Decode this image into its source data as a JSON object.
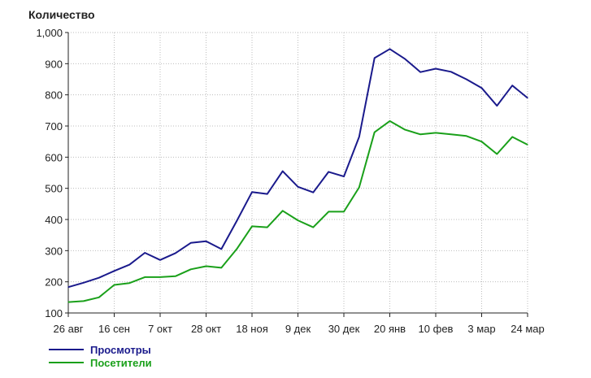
{
  "chart_data": {
    "type": "line",
    "title": "",
    "ylabel": "Количество",
    "xlabel": "",
    "ylim": [
      100,
      1000
    ],
    "yticks": [
      100,
      200,
      300,
      400,
      500,
      600,
      700,
      800,
      900,
      1000
    ],
    "ytick_labels": [
      "100",
      "200",
      "300",
      "400",
      "500",
      "600",
      "700",
      "800",
      "900",
      "1,000"
    ],
    "x_tick_labels": [
      "26 авг",
      "16 сен",
      "7 окт",
      "28 окт",
      "18 ноя",
      "9 дек",
      "30 дек",
      "20 янв",
      "10 фев",
      "3 мар",
      "24 мар"
    ],
    "points_per_tick": 3,
    "grid": true,
    "legend_position": "bottom-left",
    "series": [
      {
        "name": "Просмотры",
        "color": "#1a1a8c",
        "values": [
          183,
          197,
          213,
          235,
          255,
          293,
          270,
          292,
          325,
          330,
          305,
          395,
          488,
          482,
          555,
          505,
          487,
          553,
          538,
          665,
          918,
          947,
          915,
          873,
          884,
          874,
          850,
          822,
          765,
          830,
          790
        ]
      },
      {
        "name": "Посетители",
        "color": "#1aa01a",
        "values": [
          135,
          138,
          150,
          190,
          196,
          215,
          215,
          218,
          240,
          250,
          245,
          305,
          378,
          375,
          428,
          397,
          375,
          425,
          425,
          503,
          680,
          716,
          688,
          673,
          678,
          673,
          668,
          650,
          610,
          665,
          640
        ]
      }
    ]
  }
}
